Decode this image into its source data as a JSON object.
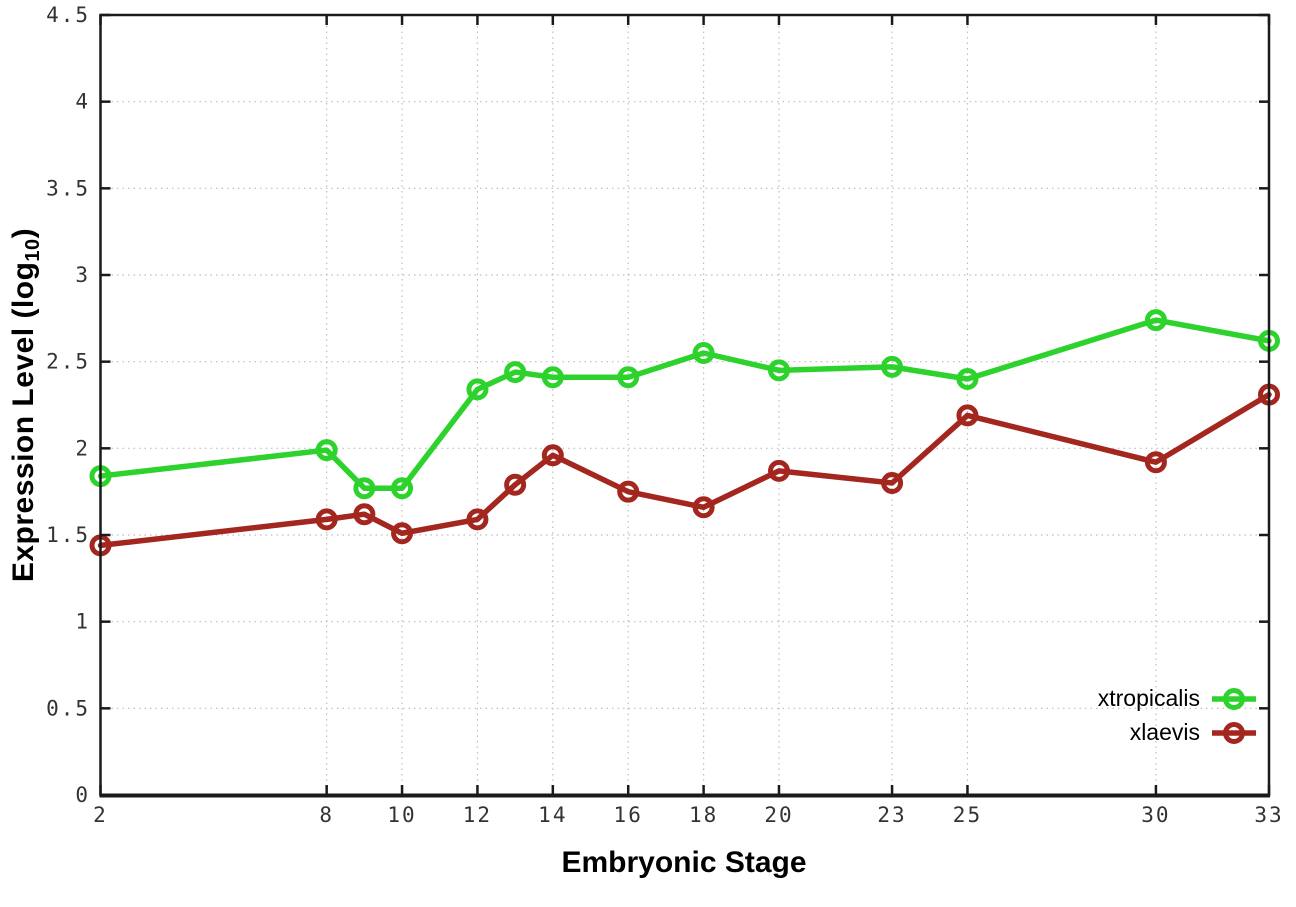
{
  "figure": {
    "background": "#ffffff",
    "border_color": "#1a1a1a",
    "grid_color": "#bdbdbd",
    "tick_label_color": "#333333"
  },
  "chart_data": {
    "type": "line",
    "title": "",
    "xlabel": "Embryonic Stage",
    "ylabel": "Expression Level (log10)",
    "ylabel_parts": {
      "main": "Expression Level (log",
      "sub": "10",
      "close": ")"
    },
    "xlim": [
      2,
      33
    ],
    "ylim": [
      0,
      4.5
    ],
    "grid": true,
    "legend_position": "bottom-right",
    "x_ticks": [
      2,
      8,
      10,
      12,
      14,
      16,
      18,
      20,
      23,
      25,
      30,
      33
    ],
    "x_tick_labels": [
      "2",
      "8",
      "10",
      "12",
      "14",
      "16",
      "18",
      "20",
      "23",
      "25",
      "30",
      "33"
    ],
    "y_ticks": [
      0,
      0.5,
      1,
      1.5,
      2,
      2.5,
      3,
      3.5,
      4,
      4.5
    ],
    "y_tick_labels": [
      "0",
      "0.5",
      "1",
      "1.5",
      "2",
      "2.5",
      "3",
      "3.5",
      "4",
      "4.5"
    ],
    "x": [
      2,
      8,
      9,
      10,
      12,
      13,
      14,
      16,
      18,
      20,
      23,
      25,
      30,
      33
    ],
    "series": [
      {
        "name": "xtropicalis",
        "color": "#2dd22d",
        "values": [
          1.84,
          1.99,
          1.77,
          1.77,
          2.34,
          2.44,
          2.41,
          2.41,
          2.55,
          2.45,
          2.47,
          2.4,
          2.74,
          2.62
        ]
      },
      {
        "name": "xlaevis",
        "color": "#a3261f",
        "values": [
          1.44,
          1.59,
          1.62,
          1.51,
          1.59,
          1.79,
          1.96,
          1.75,
          1.66,
          1.87,
          1.8,
          2.19,
          1.92,
          2.31
        ]
      }
    ]
  }
}
